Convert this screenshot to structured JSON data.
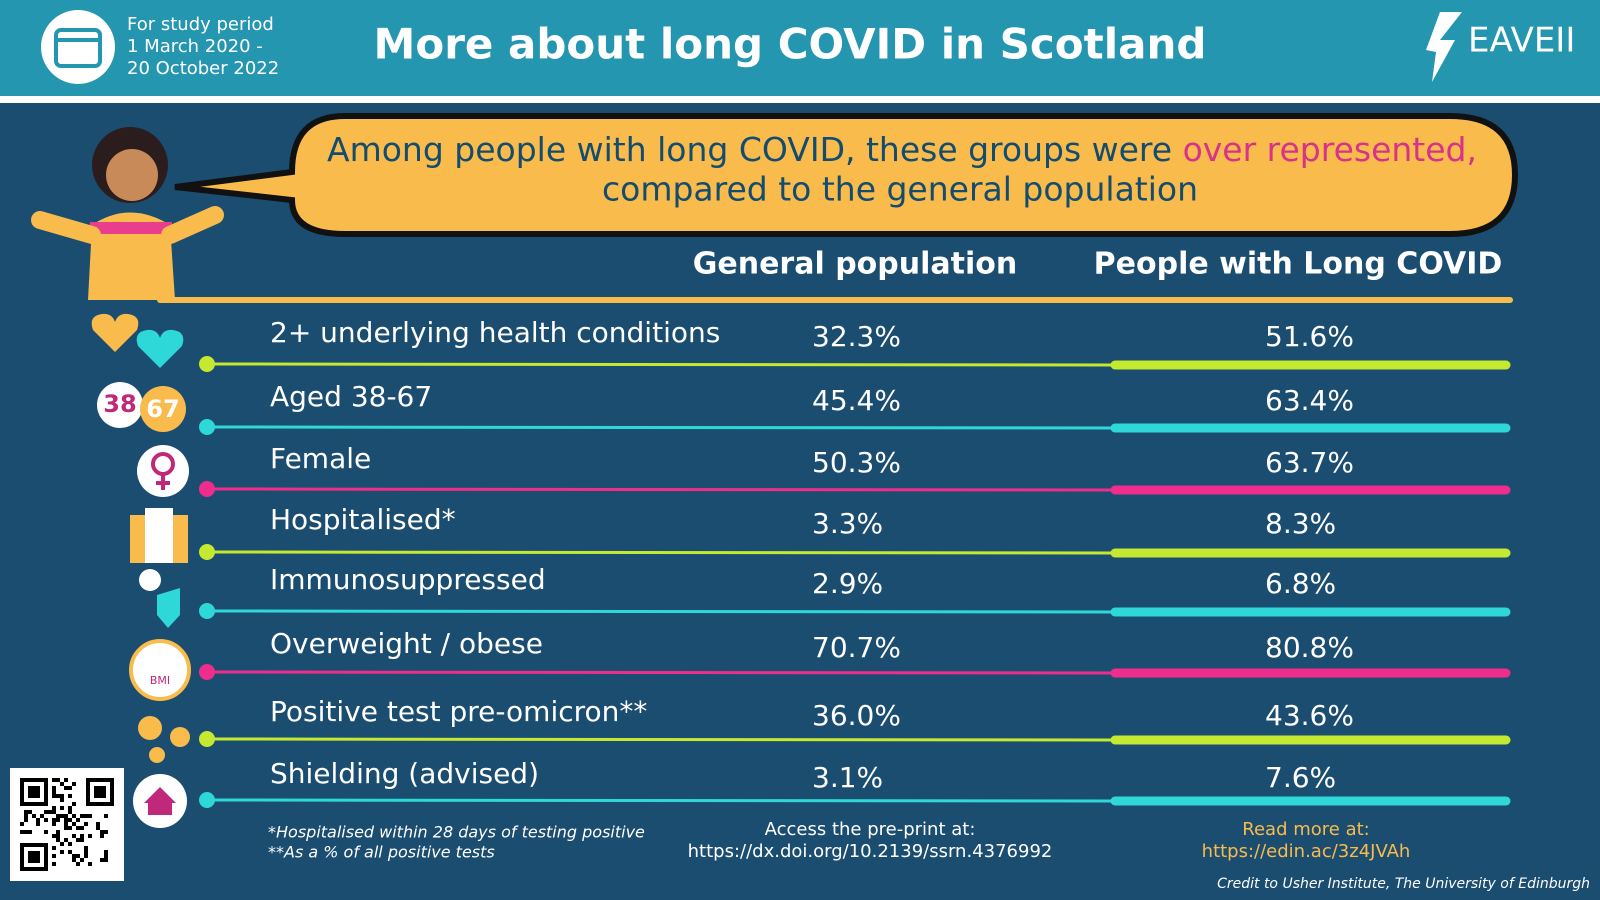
{
  "header": {
    "period_label": "For study period",
    "period_start": "1 March 2020 -",
    "period_end": "20 October 2022",
    "title": "More about long COVID in Scotland",
    "logo": "EAVEII"
  },
  "bubble": {
    "text_start": "Among people with long COVID, these groups were",
    "highlight": "over represented,",
    "text_end": "compared to the general population"
  },
  "table": {
    "columns": [
      "General population",
      "People with Long COVID"
    ],
    "rows": [
      [
        "2+ underlying health conditions",
        "32.3%",
        "51.6%"
      ],
      [
        "Aged 38-67",
        "45.4%",
        "63.4%"
      ],
      [
        "Female",
        "50.3%",
        "63.7%"
      ],
      [
        "Hospitalised*",
        "3.3%",
        "8.3%"
      ],
      [
        "Immunosuppressed",
        "2.9%",
        "6.8%"
      ],
      [
        "Overweight / obese",
        "70.7%",
        "80.8%"
      ],
      [
        "Positive test pre-omicron**",
        "36.0%",
        "43.6%"
      ],
      [
        "Shielding (advised)",
        "3.1%",
        "7.6%"
      ]
    ]
  },
  "icons": {
    "age_start": "38",
    "age_end": "67",
    "bmi": "BMI"
  },
  "footer": {
    "footnote_1": "*Hospitalised within 28 days of testing positive",
    "footnote_2": "**As a % of all positive tests",
    "preprint_label": "Access the pre-print at:",
    "preprint_url": "https://dx.doi.org/10.2139/ssrn.4376992",
    "read_more_label": "Read more at:",
    "read_more_url": "https://edin.ac/3z4JVAh",
    "credit": "Credit to  Usher Institute, The University of Edinburgh"
  }
}
